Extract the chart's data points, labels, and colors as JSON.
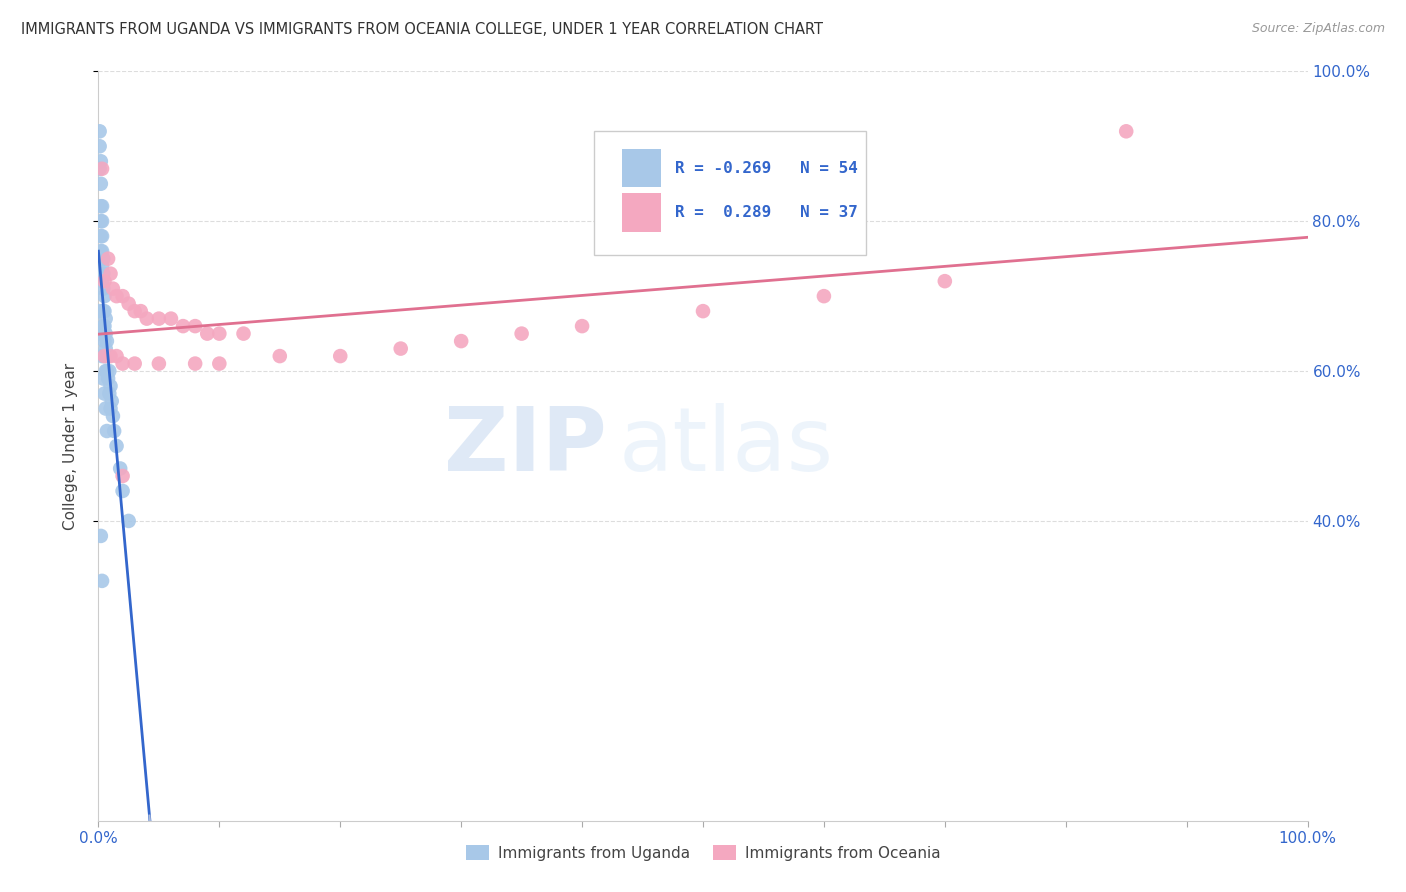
{
  "title": "IMMIGRANTS FROM UGANDA VS IMMIGRANTS FROM OCEANIA COLLEGE, UNDER 1 YEAR CORRELATION CHART",
  "source": "Source: ZipAtlas.com",
  "ylabel": "College, Under 1 year",
  "watermark_zip": "ZIP",
  "watermark_atlas": "atlas",
  "uganda_color": "#a8c8e8",
  "oceania_color": "#f4a8c0",
  "trend_uganda_color": "#3366cc",
  "trend_oceania_color": "#e07090",
  "trend_uganda_dashed_color": "#aabbdd",
  "background_color": "#ffffff",
  "grid_color": "#dddddd",
  "tick_color": "#3366cc",
  "legend_r1_label": "R = -0.269",
  "legend_n1_label": "N = 54",
  "legend_r2_label": "R =  0.289",
  "legend_n2_label": "N = 37",
  "bottom_legend1": "Immigrants from Uganda",
  "bottom_legend2": "Immigrants from Oceania",
  "uganda_x": [
    0.001,
    0.001,
    0.001,
    0.002,
    0.002,
    0.002,
    0.002,
    0.002,
    0.002,
    0.003,
    0.003,
    0.003,
    0.003,
    0.003,
    0.003,
    0.004,
    0.004,
    0.004,
    0.004,
    0.004,
    0.005,
    0.005,
    0.005,
    0.005,
    0.005,
    0.006,
    0.006,
    0.006,
    0.006,
    0.007,
    0.007,
    0.007,
    0.008,
    0.008,
    0.009,
    0.009,
    0.01,
    0.01,
    0.011,
    0.012,
    0.013,
    0.015,
    0.018,
    0.02,
    0.025,
    0.001,
    0.002,
    0.003,
    0.004,
    0.005,
    0.006,
    0.007,
    0.002,
    0.003
  ],
  "uganda_y": [
    0.92,
    0.9,
    0.87,
    0.88,
    0.85,
    0.82,
    0.8,
    0.78,
    0.76,
    0.82,
    0.8,
    0.78,
    0.76,
    0.74,
    0.72,
    0.75,
    0.73,
    0.71,
    0.68,
    0.66,
    0.7,
    0.68,
    0.66,
    0.64,
    0.62,
    0.67,
    0.65,
    0.63,
    0.6,
    0.64,
    0.62,
    0.6,
    0.62,
    0.59,
    0.6,
    0.57,
    0.58,
    0.55,
    0.56,
    0.54,
    0.52,
    0.5,
    0.47,
    0.44,
    0.4,
    0.68,
    0.65,
    0.62,
    0.59,
    0.57,
    0.55,
    0.52,
    0.38,
    0.32
  ],
  "oceania_x": [
    0.003,
    0.008,
    0.005,
    0.01,
    0.012,
    0.015,
    0.02,
    0.025,
    0.03,
    0.035,
    0.04,
    0.05,
    0.06,
    0.07,
    0.08,
    0.09,
    0.1,
    0.12,
    0.005,
    0.01,
    0.015,
    0.02,
    0.03,
    0.05,
    0.08,
    0.1,
    0.15,
    0.2,
    0.25,
    0.3,
    0.35,
    0.4,
    0.5,
    0.6,
    0.7,
    0.85,
    0.02
  ],
  "oceania_y": [
    0.87,
    0.75,
    0.72,
    0.73,
    0.71,
    0.7,
    0.7,
    0.69,
    0.68,
    0.68,
    0.67,
    0.67,
    0.67,
    0.66,
    0.66,
    0.65,
    0.65,
    0.65,
    0.62,
    0.62,
    0.62,
    0.61,
    0.61,
    0.61,
    0.61,
    0.61,
    0.62,
    0.62,
    0.63,
    0.64,
    0.65,
    0.66,
    0.68,
    0.7,
    0.72,
    0.92,
    0.46
  ],
  "xlim": [
    0.0,
    1.0
  ],
  "ylim": [
    0.0,
    1.0
  ],
  "y_ticks": [
    0.4,
    0.6,
    0.8,
    1.0
  ],
  "y_tick_labels": [
    "40.0%",
    "60.0%",
    "80.0%",
    "100.0%"
  ],
  "x_ticks": [
    0.0,
    0.1,
    0.2,
    0.3,
    0.4,
    0.5,
    0.6,
    0.7,
    0.8,
    0.9,
    1.0
  ],
  "x_tick_labels": [
    "0.0%",
    "",
    "",
    "",
    "",
    "",
    "",
    "",
    "",
    "",
    "100.0%"
  ]
}
